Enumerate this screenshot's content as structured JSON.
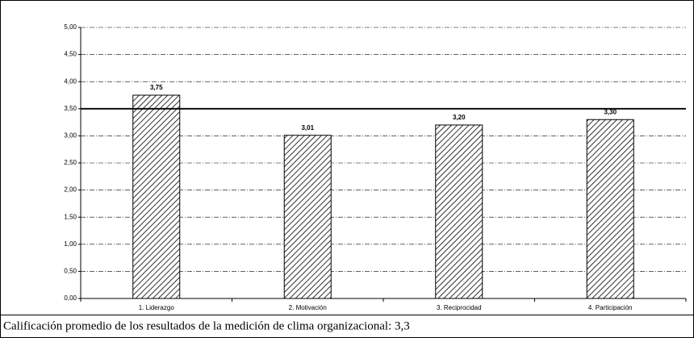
{
  "chart_data": {
    "type": "bar",
    "caption": "Calificación promedio de los resultados de la medición de clima organizacional: 3,3",
    "categories": [
      "1. Liderazgo",
      "2. Motivación",
      "3. Reciprocidad",
      "4. Participación"
    ],
    "values": [
      3.75,
      3.01,
      3.2,
      3.3
    ],
    "value_labels": [
      "3,75",
      "3,01",
      "3,20",
      "3,30"
    ],
    "color": "#000000",
    "reference_line": 3.5,
    "ylim": [
      0,
      5
    ],
    "yticks": [
      {
        "value": 0,
        "label": "0,00"
      },
      {
        "value": 0.5,
        "label": "0,50"
      },
      {
        "value": 1,
        "label": "1,00"
      },
      {
        "value": 1.5,
        "label": "1,50"
      },
      {
        "value": 2,
        "label": "2,00"
      },
      {
        "value": 2.5,
        "label": "2,50"
      },
      {
        "value": 3,
        "label": "3,00"
      },
      {
        "value": 3.5,
        "label": "3,50"
      },
      {
        "value": 4,
        "label": "4,00"
      },
      {
        "value": 4.5,
        "label": "4,50"
      },
      {
        "value": 5,
        "label": "5,00"
      }
    ],
    "grid": true
  }
}
